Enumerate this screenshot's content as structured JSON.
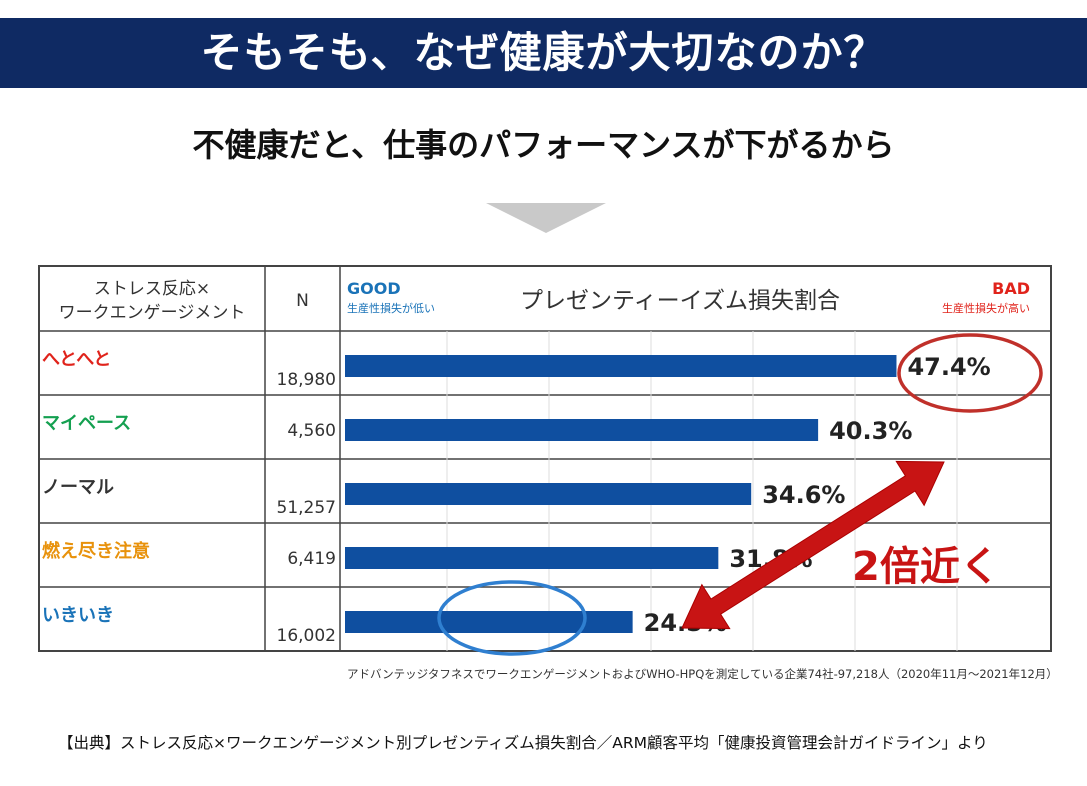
{
  "header": {
    "title": "そもそも、なぜ健康が大切なのか？"
  },
  "subtitle": "不健康だと、仕事のパフォーマンスが下がるから",
  "table": {
    "col_group_label_line1": "ストレス反応×",
    "col_group_label_line2": "ワークエンゲージメント",
    "col_n_label": "N",
    "good_label": "GOOD",
    "good_sub": "生産性損失が低い",
    "bad_label": "BAD",
    "bad_sub": "生産性損失が高い",
    "metric_title": "プレゼンティーイズム損失割合"
  },
  "chart_data": {
    "type": "bar",
    "orientation": "horizontal",
    "title": "プレゼンティーイズム損失割合",
    "categories": [
      "へとへと",
      "マイペース",
      "ノーマル",
      "燃え尽き注意",
      "いきいき"
    ],
    "category_colors": [
      "#e0231b",
      "#14a050",
      "#333333",
      "#e8920c",
      "#1a73b8"
    ],
    "n": [
      "18,980",
      "4,560",
      "51,257",
      "6,419",
      "16,002"
    ],
    "values": [
      47.4,
      40.3,
      34.6,
      31.8,
      24.5
    ],
    "value_labels": [
      "47.4%",
      "40.3%",
      "34.6%",
      "31.8%",
      "24.5%"
    ],
    "xlim": [
      0,
      50
    ],
    "grid": true,
    "bar_color": "#0f4fa0",
    "annotation_text": "2倍近く",
    "annotation_color": "#c81414",
    "highlight_circle_colors": [
      "#c0302a",
      "#2f7fd0"
    ]
  },
  "source_note": "アドバンテッジタフネスでワークエンゲージメントおよびWHO-HPQを測定している企業74社-97,218人（2020年11月～2021年12月）",
  "citation": "【出典】ストレス反応×ワークエンゲージメント別プレゼンティズム損失割合／ARM顧客平均「健康投資管理会計ガイドライン」より"
}
